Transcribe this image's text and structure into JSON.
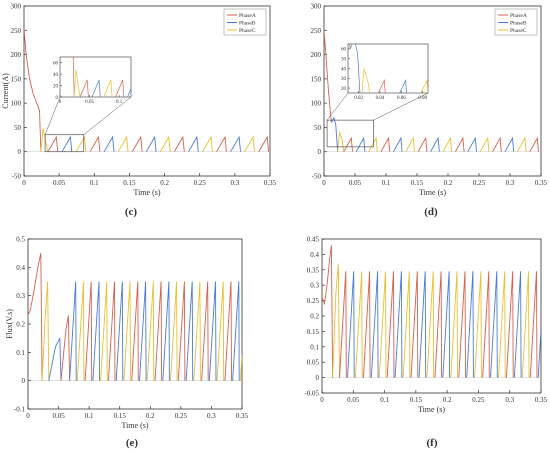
{
  "colors": {
    "phaseA": "#d6604d",
    "phaseB": "#4a7bd6",
    "phaseC": "#e8c030",
    "axis": "#333333",
    "inset_box": "#555555"
  },
  "chart_data": [
    {
      "id": "c",
      "panel_label": "(c)",
      "type": "line",
      "xlabel": "Time (s)",
      "ylabel": "Current(A)",
      "xlim": [
        0,
        0.35
      ],
      "ylim": [
        -50,
        300
      ],
      "xticks": [
        0,
        0.05,
        0.1,
        0.15,
        0.2,
        0.25,
        0.3,
        0.35
      ],
      "yticks": [
        -50,
        0,
        50,
        100,
        150,
        200,
        250,
        300
      ],
      "xtick_labels": [
        "0",
        "0.05",
        "0.1",
        "0.15",
        "0.2",
        "0.25",
        "0.3",
        "0.35"
      ],
      "ytick_labels": [
        "-50",
        "0",
        "50",
        "100",
        "150",
        "200",
        "250",
        "300"
      ],
      "legend": {
        "position": "top-right",
        "entries": [
          "PhaseA",
          "PhaseB",
          "PhaseC"
        ]
      },
      "series": [
        {
          "name": "PhaseA",
          "x": [
            0,
            0.003,
            0.008,
            0.013,
            0.018,
            0.022,
            0.024
          ],
          "y": [
            255,
            200,
            150,
            120,
            100,
            85,
            0
          ]
        },
        {
          "name": "PhaseC",
          "x": [
            0.024,
            0.027,
            0.031,
            0.034
          ],
          "y": [
            0,
            48,
            20,
            0
          ]
        }
      ],
      "steady_state": {
        "start": 0.034,
        "period": 0.02,
        "peak": 30,
        "rise": 0.012,
        "fall": 0.002
      },
      "inset": {
        "zoom_x": [
          0.03,
          0.085
        ],
        "zoom_y": [
          0,
          35
        ],
        "xticks": [
          0,
          0.05,
          0.1
        ],
        "yticks": [
          0,
          20,
          40,
          60
        ],
        "xtick_labels": [
          "0",
          "0.05",
          "0.1"
        ],
        "ytick_labels": [
          "0",
          "20",
          "40",
          "60"
        ],
        "xlim": [
          0,
          0.12
        ],
        "ylim": [
          0,
          70
        ]
      }
    },
    {
      "id": "d",
      "panel_label": "(d)",
      "type": "line",
      "xlabel": "Time (s)",
      "ylabel": "",
      "xlim": [
        0,
        0.35
      ],
      "ylim": [
        -50,
        300
      ],
      "xticks": [
        0,
        0.05,
        0.1,
        0.15,
        0.2,
        0.25,
        0.3,
        0.35
      ],
      "yticks": [
        -50,
        0,
        50,
        100,
        150,
        200,
        250,
        300
      ],
      "xtick_labels": [
        "0",
        "0.05",
        "0.1",
        "0.15",
        "0.2",
        "0.25",
        "0.3",
        "0.35"
      ],
      "ytick_labels": [
        "-50",
        "0",
        "50",
        "100",
        "150",
        "200",
        "250",
        "300"
      ],
      "legend": {
        "position": "top-right",
        "entries": [
          "PhaseA",
          "PhaseB",
          "PhaseC"
        ]
      },
      "series": [
        {
          "name": "PhaseA",
          "x": [
            0,
            0.003,
            0.007,
            0.01,
            0.012
          ],
          "y": [
            250,
            200,
            130,
            85,
            60
          ]
        },
        {
          "name": "PhaseB",
          "x": [
            0.012,
            0.016,
            0.019,
            0.022
          ],
          "y": [
            60,
            70,
            55,
            0
          ]
        },
        {
          "name": "PhaseC",
          "x": [
            0.022,
            0.025,
            0.029,
            0.032
          ],
          "y": [
            0,
            40,
            25,
            0
          ]
        }
      ],
      "steady_state": {
        "start": 0.032,
        "period": 0.02,
        "peak": 28,
        "rise": 0.012,
        "fall": 0.002
      },
      "inset": {
        "zoom_x": [
          0.005,
          0.08
        ],
        "zoom_y": [
          10,
          65
        ],
        "xticks": [
          0.02,
          0.04,
          0.06,
          0.08
        ],
        "yticks": [
          20,
          30,
          40,
          50,
          60
        ],
        "xtick_labels": [
          "0.02",
          "0.04",
          "0.06",
          "0.08"
        ],
        "ytick_labels": [
          "20",
          "30",
          "40",
          "50",
          "60"
        ],
        "xlim": [
          0.01,
          0.085
        ],
        "ylim": [
          15,
          65
        ]
      }
    },
    {
      "id": "e",
      "panel_label": "(e)",
      "type": "line",
      "xlabel": "Time (s)",
      "ylabel": "Flux(V.s)",
      "xlim": [
        0,
        0.35
      ],
      "ylim": [
        -0.1,
        0.5
      ],
      "xticks": [
        0,
        0.05,
        0.1,
        0.15,
        0.2,
        0.25,
        0.3,
        0.35
      ],
      "yticks": [
        -0.1,
        0,
        0.1,
        0.2,
        0.3,
        0.4,
        0.5
      ],
      "xtick_labels": [
        "0",
        "0.05",
        "0.1",
        "0.15",
        "0.2",
        "0.25",
        "0.3",
        "0.35"
      ],
      "ytick_labels": [
        "-0.1",
        "0",
        "0.1",
        "0.2",
        "0.3",
        "0.4",
        "0.5"
      ],
      "series": [
        {
          "name": "PhaseA",
          "x": [
            0,
            0.004,
            0.01,
            0.016,
            0.021,
            0.023
          ],
          "y": [
            0.23,
            0.25,
            0.32,
            0.4,
            0.45,
            0.0
          ]
        },
        {
          "name": "PhaseC",
          "x": [
            0.023,
            0.028,
            0.032,
            0.034
          ],
          "y": [
            0.0,
            0.22,
            0.35,
            0.0
          ]
        },
        {
          "name": "PhaseB",
          "x": [
            0.034,
            0.045,
            0.052,
            0.054
          ],
          "y": [
            0.0,
            0.12,
            0.15,
            0.0
          ]
        },
        {
          "name": "PhaseA",
          "x": [
            0.054,
            0.062,
            0.066,
            0.068
          ],
          "y": [
            0.0,
            0.18,
            0.23,
            0.0
          ]
        }
      ],
      "steady_state": {
        "start": 0.068,
        "period": 0.0127,
        "peak": 0.35,
        "rise": 0.01,
        "fall": 0.0008
      }
    },
    {
      "id": "f",
      "panel_label": "(f)",
      "type": "line",
      "xlabel": "Time (s)",
      "ylabel": "",
      "xlim": [
        0,
        0.35
      ],
      "ylim": [
        -0.05,
        0.45
      ],
      "xticks": [
        0,
        0.05,
        0.1,
        0.15,
        0.2,
        0.25,
        0.3,
        0.35
      ],
      "yticks": [
        -0.05,
        0,
        0.05,
        0.1,
        0.15,
        0.2,
        0.25,
        0.3,
        0.35,
        0.4,
        0.45
      ],
      "xtick_labels": [
        "0",
        "0.05",
        "0.1",
        "0.15",
        "0.2",
        "0.25",
        "0.3",
        "0.35"
      ],
      "ytick_labels": [
        "-0.05",
        "0",
        "0.05",
        "0.1",
        "0.15",
        "0.2",
        "0.25",
        "0.3",
        "0.35",
        "0.4",
        "0.45"
      ],
      "series": [
        {
          "name": "PhaseA",
          "x": [
            0,
            0.004,
            0.008,
            0.012,
            0.015,
            0.017
          ],
          "y": [
            0.26,
            0.24,
            0.3,
            0.38,
            0.43,
            0.0
          ]
        },
        {
          "name": "PhaseC",
          "x": [
            0.017,
            0.022,
            0.026,
            0.028
          ],
          "y": [
            0.0,
            0.27,
            0.37,
            0.0
          ]
        }
      ],
      "steady_state": {
        "start": 0.028,
        "period": 0.0127,
        "peak": 0.345,
        "rise": 0.01,
        "fall": 0.0008
      }
    }
  ]
}
